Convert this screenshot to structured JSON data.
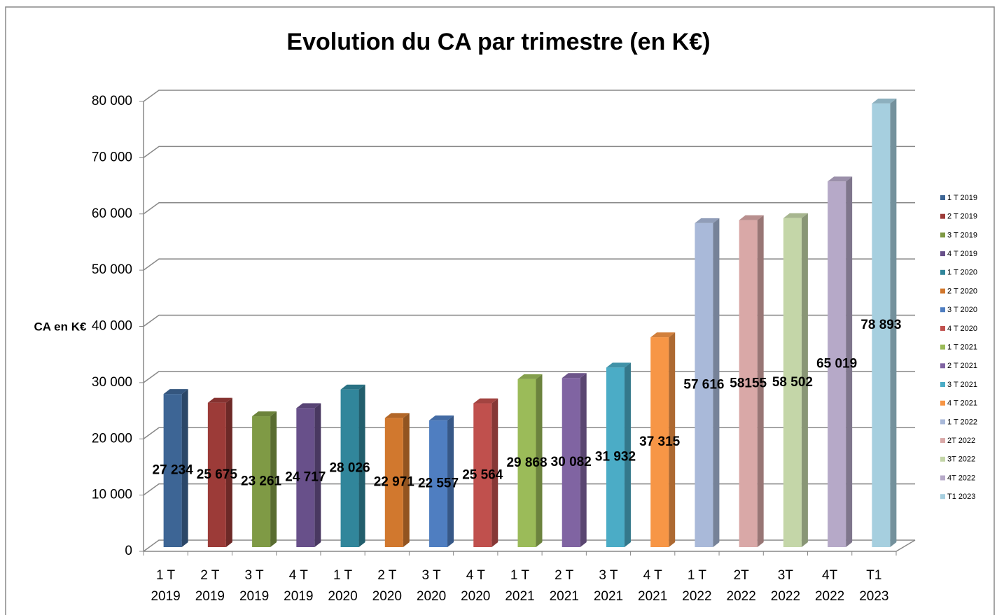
{
  "chart_data": {
    "type": "bar3d",
    "title": "Evolution du CA par trimestre (en K€)",
    "y_label": "CA en K€",
    "categories": [
      "1 T 2019",
      "2 T 2019",
      "3 T 2019",
      "4 T 2019",
      "1 T 2020",
      "2 T 2020",
      "3 T 2020",
      "4 T 2020",
      "1 T 2021",
      "2 T 2021",
      "3 T 2021",
      "4 T 2021",
      "1 T 2022",
      "2T 2022",
      "3T 2022",
      "4T 2022",
      "T1 2023"
    ],
    "values": [
      27234,
      25675,
      23261,
      24717,
      28026,
      22971,
      22557,
      25564,
      29868,
      30082,
      31932,
      37315,
      57616,
      58155,
      58502,
      65019,
      78893
    ],
    "value_labels": [
      "27 234",
      "25 675",
      "23 261",
      "24 717",
      "28 026",
      "22 971",
      "22 557",
      "25 564",
      "29 868",
      "30 082",
      "31 932",
      "37 315",
      "57 616",
      "58155",
      "58 502",
      "65 019",
      "78 893"
    ],
    "colors": [
      "#3d6595",
      "#9c3b38",
      "#7f9a45",
      "#68508a",
      "#31869b",
      "#d1782e",
      "#4f7ec1",
      "#c0504d",
      "#9bbb59",
      "#8064a2",
      "#4bacc6",
      "#f79646",
      "#a9b9d9",
      "#d9a8a7",
      "#c4d6a8",
      "#b6a9c8",
      "#a6cfdf"
    ],
    "ylim": [
      0,
      80000
    ],
    "yticks": [
      0,
      {
        "value": 10000,
        "label": "10 000"
      },
      {
        "value": 20000,
        "label": "20 000"
      },
      {
        "value": 30000,
        "label": "30 000"
      },
      {
        "value": 40000,
        "label": "40 000"
      },
      {
        "value": 50000,
        "label": "50 000"
      },
      {
        "value": 60000,
        "label": "60 000"
      },
      {
        "value": 70000,
        "label": "70 000"
      },
      {
        "value": 80000,
        "label": "80 000"
      }
    ],
    "grid": true,
    "legend": "right"
  }
}
